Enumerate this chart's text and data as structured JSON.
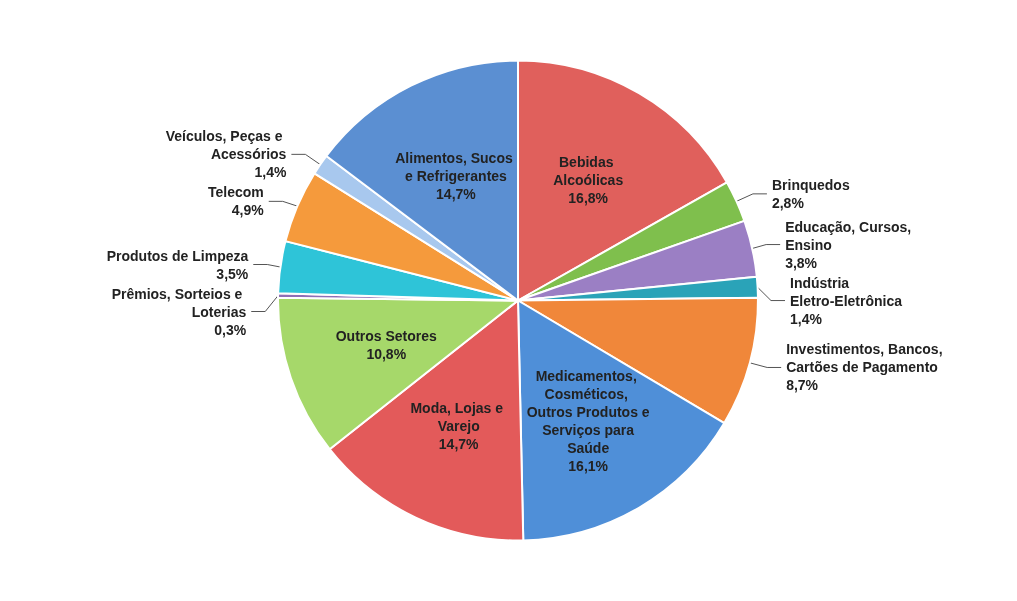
{
  "chart_data": {
    "type": "pie",
    "categories": [
      "Bebidas Alcoólicas",
      "Brinquedos",
      "Educação, Cursos, Ensino",
      "Indústria Eletro-Eletrônica",
      "Investimentos, Bancos, Cartões de Pagamento",
      "Medicamentos, Cosméticos, Outros Produtos e Serviços para Saúde",
      "Moda, Lojas e Varejo",
      "Outros Setores",
      "Prêmios, Sorteios e Loterias",
      "Produtos de Limpeza",
      "Telecom",
      "Veículos, Peças e Acessórios",
      "Alimentos, Sucos e Refrigerantes"
    ],
    "values": [
      16.8,
      2.8,
      3.8,
      1.4,
      8.7,
      16.1,
      14.7,
      10.8,
      0.3,
      3.5,
      4.9,
      1.4,
      14.7
    ],
    "value_labels": [
      "16,8%",
      "2,8%",
      "3,8%",
      "1,4%",
      "8,7%",
      "16,1%",
      "14,7%",
      "10,8%",
      "0,3%",
      "3,5%",
      "4,9%",
      "1,4%",
      "14,7%"
    ],
    "colors": [
      "#e0605c",
      "#7fbf4d",
      "#9b7fc4",
      "#2aa3b8",
      "#f0873a",
      "#4f8fd8",
      "#e35a5a",
      "#a6d86a",
      "#8e6fb5",
      "#2ec4d8",
      "#f59a3c",
      "#a8c8ee",
      "#5b8fd2"
    ],
    "legend": false
  }
}
